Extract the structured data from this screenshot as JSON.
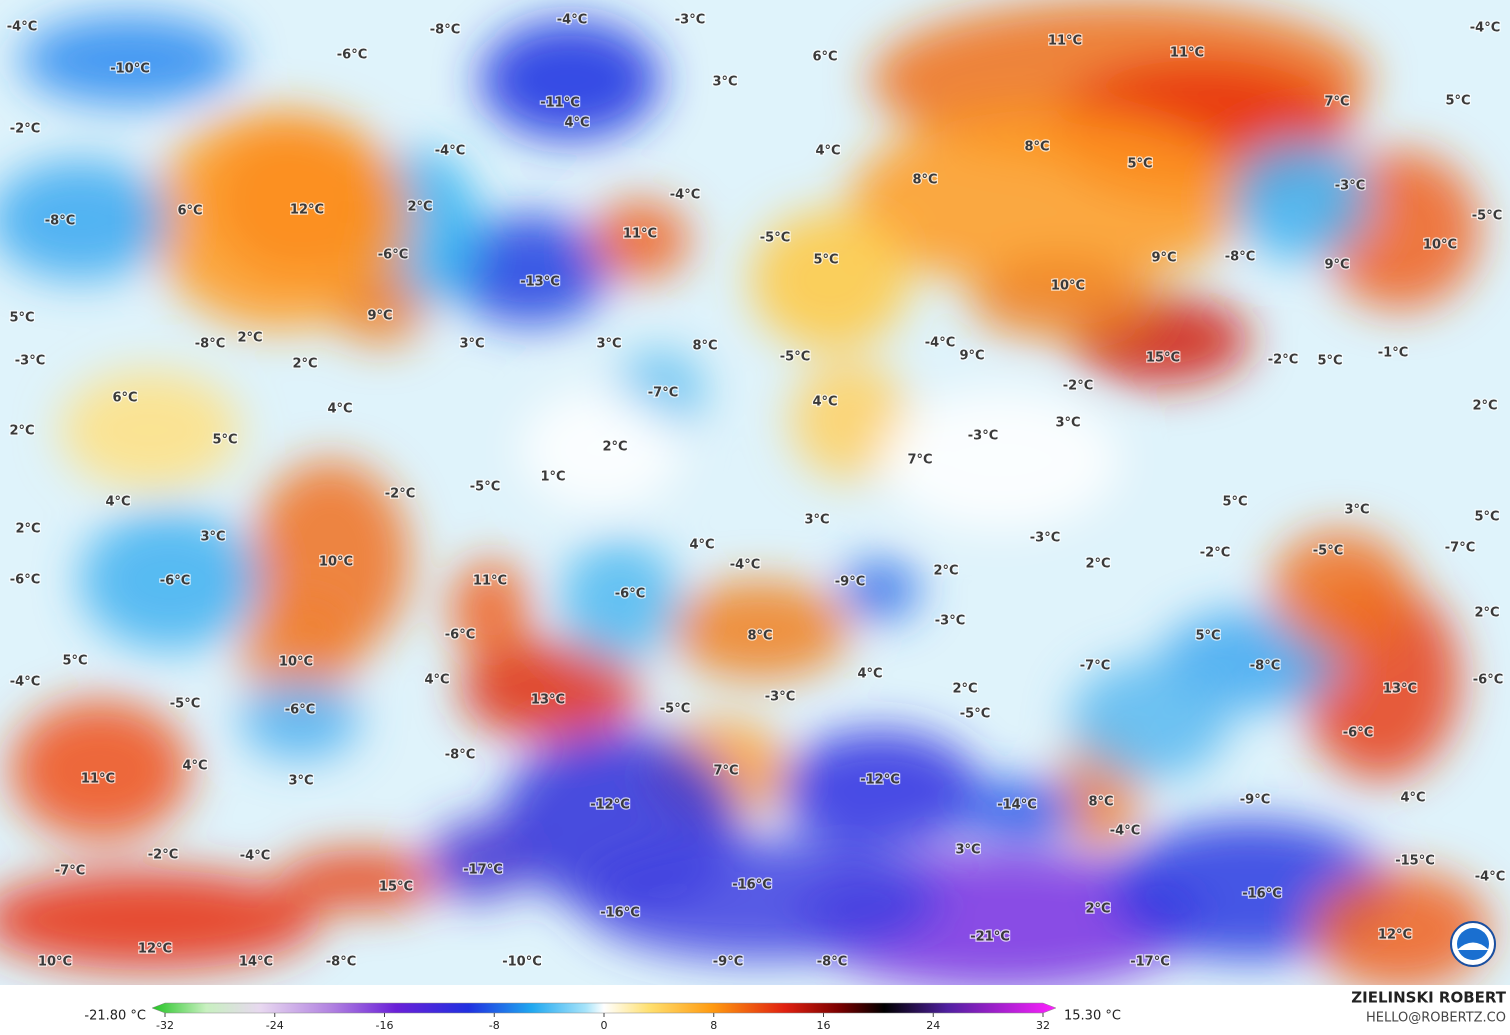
{
  "map": {
    "labels": [
      "-4°C",
      "-10°C",
      "-6°C",
      "-8°C",
      "-4°C",
      "-3°C",
      "-11°C",
      "4°C",
      "3°C",
      "6°C",
      "11°C",
      "11°C",
      "-4°C",
      "7°C",
      "5°C",
      "-2°C",
      "-4°C",
      "4°C",
      "8°C",
      "5°C",
      "-4°C",
      "8°C",
      "-3°C",
      "-8°C",
      "6°C",
      "12°C",
      "2°C",
      "-5°C",
      "11°C",
      "-5°C",
      "10°C",
      "-6°C",
      "-13°C",
      "5°C",
      "9°C",
      "-8°C",
      "9°C",
      "10°C",
      "5°C",
      "9°C",
      "2°C",
      "-8°C",
      "3°C",
      "3°C",
      "8°C",
      "-4°C",
      "9°C",
      "15°C",
      "-2°C",
      "5°C",
      "-1°C",
      "-3°C",
      "2°C",
      "-5°C",
      "-7°C",
      "-2°C",
      "6°C",
      "4°C",
      "2°C",
      "4°C",
      "3°C",
      "2°C",
      "5°C",
      "2°C",
      "-3°C",
      "7°C",
      "1°C",
      "-5°C",
      "-2°C",
      "4°C",
      "5°C",
      "3°C",
      "2°C",
      "3°C",
      "3°C",
      "5°C",
      "-3°C",
      "4°C",
      "-2°C",
      "-5°C",
      "-7°C",
      "10°C",
      "-4°C",
      "2°C",
      "2°C",
      "-6°C",
      "-6°C",
      "11°C",
      "-9°C",
      "-6°C",
      "-3°C",
      "2°C",
      "-6°C",
      "8°C",
      "5°C",
      "5°C",
      "10°C",
      "-7°C",
      "-8°C",
      "4°C",
      "-4°C",
      "4°C",
      "13°C",
      "-3°C",
      "2°C",
      "-6°C",
      "13°C",
      "-5°C",
      "-6°C",
      "-5°C",
      "-5°C",
      "-6°C",
      "-8°C",
      "4°C",
      "7°C",
      "11°C",
      "3°C",
      "-12°C",
      "-12°C",
      "-14°C",
      "8°C",
      "-9°C",
      "4°C",
      "-4°C",
      "-2°C",
      "-4°C",
      "3°C",
      "-15°C",
      "-7°C",
      "-17°C",
      "-4°C",
      "15°C",
      "-16°C",
      "-16°C",
      "-16°C",
      "2°C",
      "-21°C",
      "12°C",
      "12°C",
      "10°C",
      "14°C",
      "-8°C",
      "-10°C",
      "-9°C",
      "-8°C",
      "-17°C"
    ],
    "colorbar": {
      "min_label": "-21.80 °C",
      "max_label": "15.30 °C",
      "lim": [
        -32,
        32
      ],
      "ticks": [
        -32,
        -24,
        -16,
        -8,
        0,
        8,
        16,
        24,
        32
      ]
    },
    "credit": {
      "name": "ZIELINSKI ROBERT",
      "contact": "HELLO@ROBERTZ.CO"
    }
  }
}
